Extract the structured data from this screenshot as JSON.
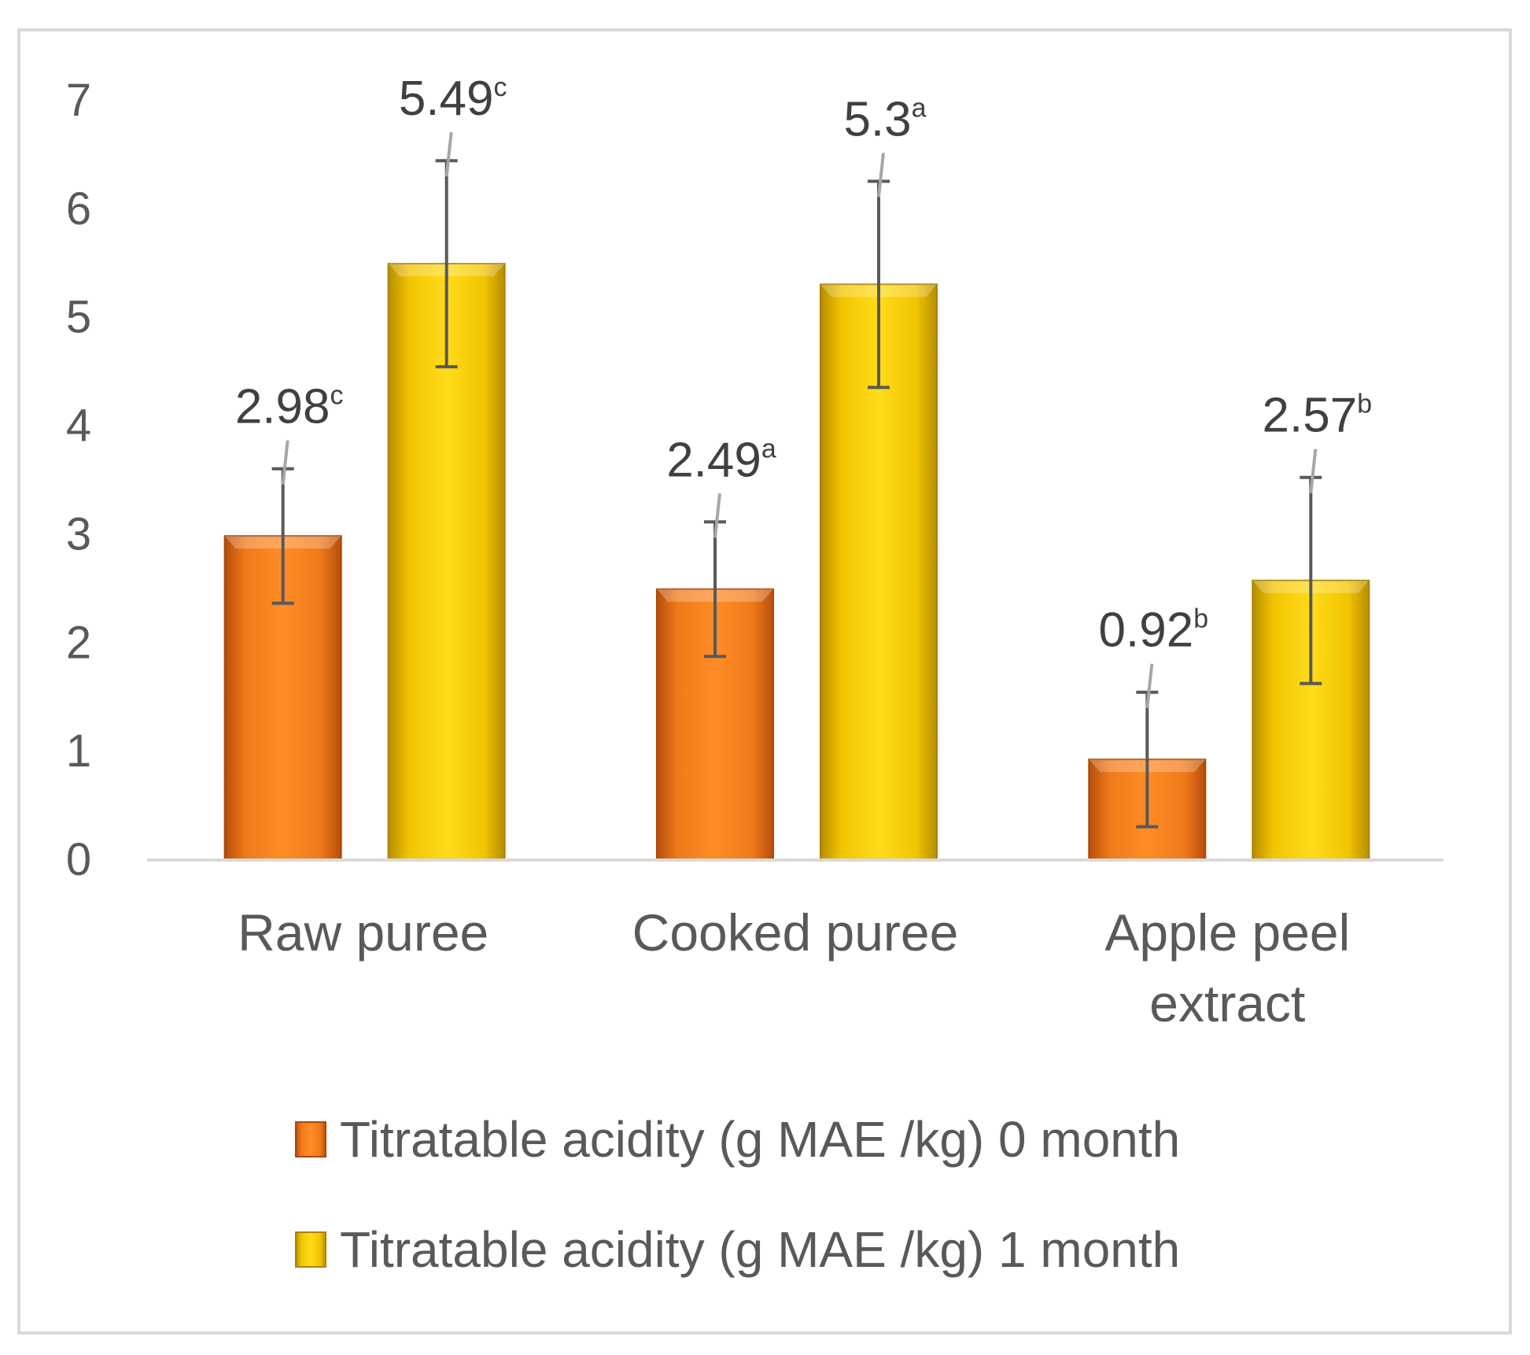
{
  "chart_data": {
    "type": "bar",
    "title": "",
    "xlabel": "",
    "ylabel": "",
    "ylim": [
      0,
      7
    ],
    "yticks": [
      0,
      1,
      2,
      3,
      4,
      5,
      6,
      7
    ],
    "categories": [
      {
        "lines": [
          "Raw puree"
        ]
      },
      {
        "lines": [
          "Cooked puree"
        ]
      },
      {
        "lines": [
          "Apple peel",
          "extract"
        ]
      }
    ],
    "series": [
      {
        "name": "Titratable acidity (g MAE /kg) 0 month",
        "color": "#f07a1a",
        "values": [
          2.98,
          2.49,
          0.92
        ],
        "errors": [
          0.62,
          0.62,
          0.62
        ],
        "labels": [
          "2.98",
          "2.49",
          "0.92"
        ],
        "superscripts": [
          "c",
          "a",
          "b"
        ]
      },
      {
        "name": "Titratable acidity (g MAE /kg) 1 month",
        "color": "#f2c400",
        "values": [
          5.49,
          5.3,
          2.57
        ],
        "errors": [
          0.95,
          0.95,
          0.95
        ],
        "labels": [
          "5.49",
          "5.3",
          "2.57"
        ],
        "superscripts": [
          "c",
          "a",
          "b"
        ]
      }
    ],
    "legend_position": "bottom"
  }
}
